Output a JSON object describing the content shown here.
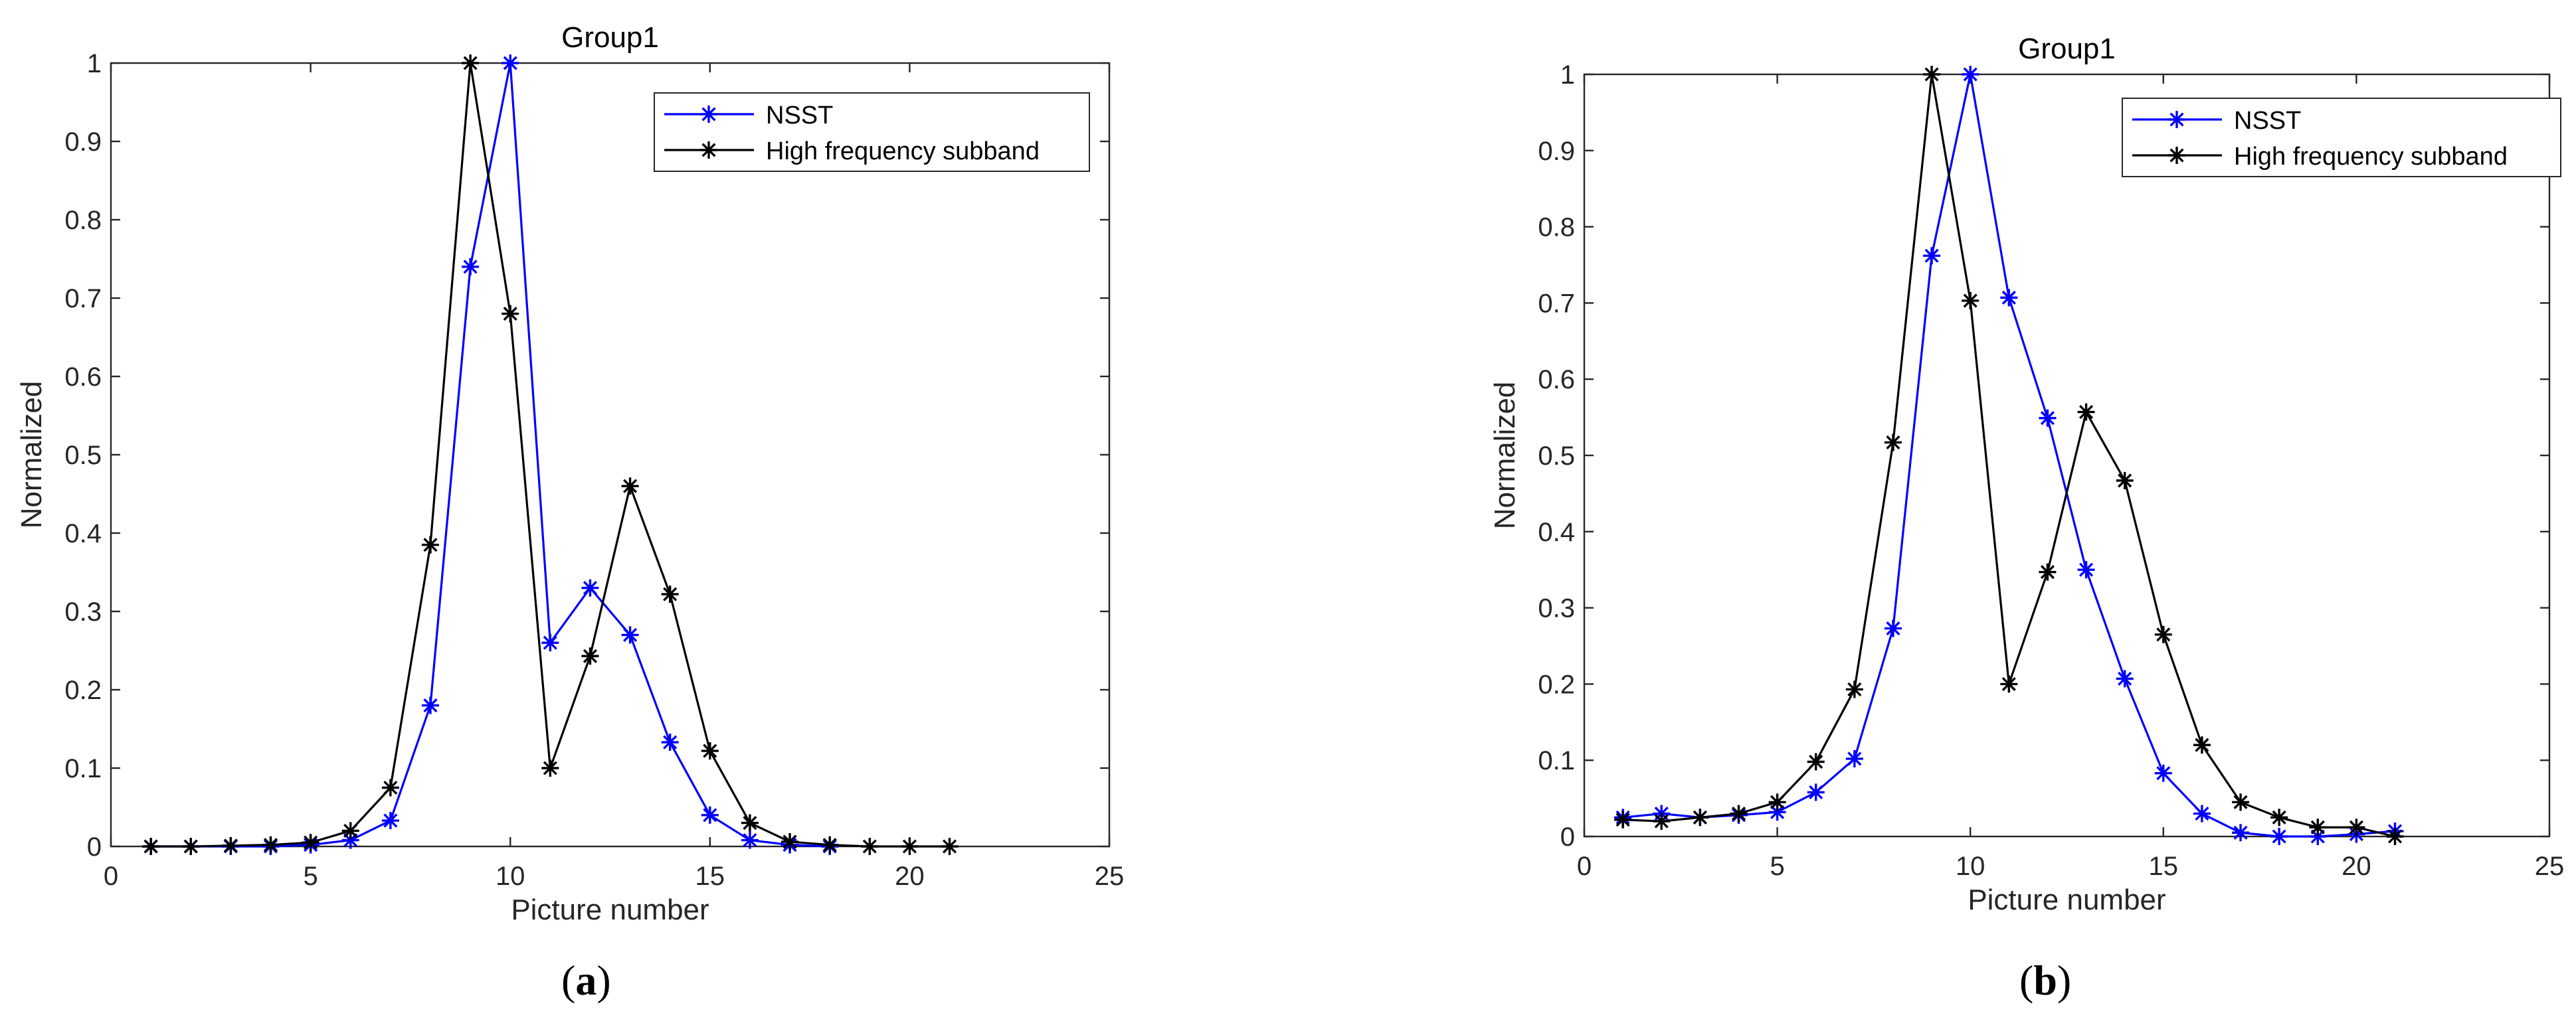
{
  "charts": [
    {
      "id": "a",
      "panel_label": "a",
      "chart_data": {
        "type": "line",
        "title": "Group1",
        "xlabel": "Picture number",
        "ylabel": "Normalized",
        "xlim": [
          0,
          25
        ],
        "ylim": [
          0,
          1
        ],
        "xticks": [
          0,
          5,
          10,
          15,
          20,
          25
        ],
        "yticks": [
          0,
          0.1,
          0.2,
          0.3,
          0.4,
          0.5,
          0.6,
          0.7,
          0.8,
          0.9,
          1
        ],
        "grid": false,
        "legend_position": "top-right",
        "series": [
          {
            "name": "NSST",
            "color": "#0000ff",
            "marker": "asterisk",
            "x": [
              1,
              2,
              3,
              4,
              5,
              6,
              7,
              8,
              9,
              10,
              11,
              12,
              13,
              14,
              15,
              16,
              17,
              18
            ],
            "y": [
              0.0,
              0.0,
              0.0,
              0.0,
              0.002,
              0.008,
              0.033,
              0.18,
              0.74,
              1.0,
              0.26,
              0.33,
              0.27,
              0.133,
              0.04,
              0.008,
              0.002,
              0.0
            ]
          },
          {
            "name": "High frequency subband",
            "color": "#000000",
            "marker": "asterisk",
            "x": [
              1,
              2,
              3,
              4,
              5,
              6,
              7,
              8,
              9,
              10,
              11,
              12,
              13,
              14,
              15,
              16,
              17,
              18,
              19,
              20,
              21
            ],
            "y": [
              0.0,
              0.0,
              0.001,
              0.002,
              0.005,
              0.02,
              0.075,
              0.385,
              1.0,
              0.68,
              0.1,
              0.243,
              0.46,
              0.322,
              0.122,
              0.03,
              0.006,
              0.002,
              0.0,
              0.0,
              0.0
            ]
          }
        ]
      }
    },
    {
      "id": "b",
      "panel_label": "b",
      "chart_data": {
        "type": "line",
        "title": "Group1",
        "xlabel": "Picture number",
        "ylabel": "Normalized",
        "xlim": [
          0,
          25
        ],
        "ylim": [
          0,
          1
        ],
        "xticks": [
          0,
          5,
          10,
          15,
          20,
          25
        ],
        "yticks": [
          0,
          0.1,
          0.2,
          0.3,
          0.4,
          0.5,
          0.6,
          0.7,
          0.8,
          0.9,
          1
        ],
        "grid": false,
        "legend_position": "top-right",
        "series": [
          {
            "name": "NSST",
            "color": "#0000ff",
            "marker": "asterisk",
            "x": [
              1,
              2,
              3,
              4,
              5,
              6,
              7,
              8,
              9,
              10,
              11,
              12,
              13,
              14,
              15,
              16,
              17,
              18,
              19,
              20,
              21
            ],
            "y": [
              0.025,
              0.03,
              0.025,
              0.028,
              0.032,
              0.058,
              0.102,
              0.273,
              0.762,
              1.0,
              0.707,
              0.549,
              0.35,
              0.207,
              0.083,
              0.03,
              0.005,
              0.0,
              0.0,
              0.003,
              0.007
            ]
          },
          {
            "name": "High frequency subband",
            "color": "#000000",
            "marker": "asterisk",
            "x": [
              1,
              2,
              3,
              4,
              5,
              6,
              7,
              8,
              9,
              10,
              11,
              12,
              13,
              14,
              15,
              16,
              17,
              18,
              19,
              20,
              21
            ],
            "y": [
              0.022,
              0.02,
              0.025,
              0.03,
              0.045,
              0.098,
              0.193,
              0.517,
              1.0,
              0.703,
              0.2,
              0.347,
              0.557,
              0.467,
              0.265,
              0.12,
              0.045,
              0.025,
              0.012,
              0.012,
              0.0
            ]
          }
        ]
      }
    }
  ]
}
